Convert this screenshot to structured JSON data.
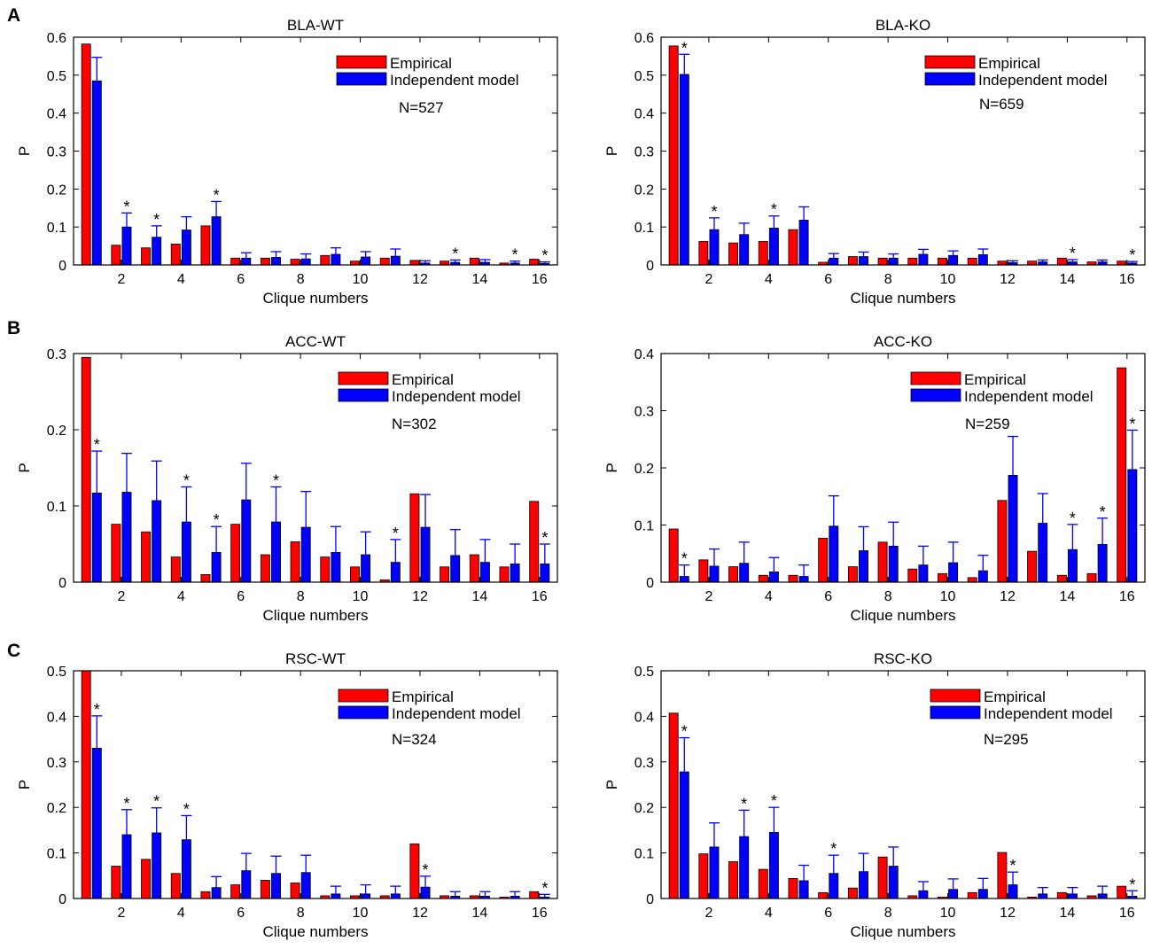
{
  "panel_letters": [
    "A",
    "B",
    "C"
  ],
  "colors": {
    "empirical": "#ff0000",
    "model": "#0000ff",
    "errorbar": "#0000ff",
    "axis": "#000000"
  },
  "chart_data": [
    {
      "type": "bar",
      "panel": "A",
      "title": "BLA-WT",
      "xlabel": "Clique numbers",
      "ylabel": "P",
      "ylim": [
        0,
        0.6
      ],
      "yticks": [
        0,
        0.1,
        0.2,
        0.3,
        0.4,
        0.5,
        0.6
      ],
      "yticklabels": [
        "0",
        "0.1",
        "0.2",
        "0.3",
        "0.4",
        "0.5",
        "0.6"
      ],
      "xticks": [
        2,
        4,
        6,
        8,
        10,
        12,
        14,
        16
      ],
      "xticklabels": [
        "2",
        "4",
        "6",
        "8",
        "10",
        "12",
        "14",
        "16"
      ],
      "categories": [
        1,
        2,
        3,
        4,
        5,
        6,
        7,
        8,
        9,
        10,
        11,
        12,
        13,
        14,
        15,
        16
      ],
      "legend": [
        "Empirical",
        "Independent model"
      ],
      "legend_position": "top-right",
      "annotation": "N=527",
      "series": [
        {
          "name": "Empirical",
          "values": [
            0.582,
            0.052,
            0.045,
            0.055,
            0.103,
            0.018,
            0.018,
            0.015,
            0.025,
            0.01,
            0.018,
            0.012,
            0.01,
            0.018,
            0.005,
            0.015
          ]
        },
        {
          "name": "Independent model",
          "values": [
            0.485,
            0.1,
            0.073,
            0.092,
            0.127,
            0.018,
            0.02,
            0.016,
            0.028,
            0.021,
            0.023,
            0.005,
            0.007,
            0.007,
            0.005,
            0.004
          ],
          "error": [
            0.062,
            0.037,
            0.03,
            0.035,
            0.04,
            0.014,
            0.015,
            0.013,
            0.017,
            0.014,
            0.019,
            0.006,
            0.006,
            0.007,
            0.005,
            0.004
          ]
        }
      ],
      "significant": [
        2,
        3,
        5,
        13,
        15,
        16
      ],
      "star_label": "*"
    },
    {
      "type": "bar",
      "panel": "A",
      "title": "BLA-KO",
      "xlabel": "Clique numbers",
      "ylabel": "P",
      "ylim": [
        0,
        0.6
      ],
      "yticks": [
        0,
        0.1,
        0.2,
        0.3,
        0.4,
        0.5,
        0.6
      ],
      "yticklabels": [
        "0",
        "0.1",
        "0.2",
        "0.3",
        "0.4",
        "0.5",
        "0.6"
      ],
      "xticks": [
        2,
        4,
        6,
        8,
        10,
        12,
        14,
        16
      ],
      "xticklabels": [
        "2",
        "4",
        "6",
        "8",
        "10",
        "12",
        "14",
        "16"
      ],
      "categories": [
        1,
        2,
        3,
        4,
        5,
        6,
        7,
        8,
        9,
        10,
        11,
        12,
        13,
        14,
        15,
        16
      ],
      "legend": [
        "Empirical",
        "Independent model"
      ],
      "legend_position": "top-right",
      "annotation": "N=659",
      "series": [
        {
          "name": "Empirical",
          "values": [
            0.577,
            0.062,
            0.058,
            0.062,
            0.093,
            0.007,
            0.022,
            0.018,
            0.018,
            0.018,
            0.018,
            0.01,
            0.01,
            0.018,
            0.008,
            0.01
          ]
        },
        {
          "name": "Independent model",
          "values": [
            0.502,
            0.093,
            0.08,
            0.097,
            0.118,
            0.018,
            0.022,
            0.018,
            0.028,
            0.025,
            0.027,
            0.006,
            0.008,
            0.008,
            0.008,
            0.005
          ],
          "error": [
            0.053,
            0.031,
            0.03,
            0.032,
            0.035,
            0.012,
            0.012,
            0.011,
            0.013,
            0.012,
            0.015,
            0.005,
            0.005,
            0.006,
            0.005,
            0.004
          ]
        }
      ],
      "significant": [
        1,
        2,
        4,
        14,
        16
      ],
      "star_label": "*"
    },
    {
      "type": "bar",
      "panel": "B",
      "title": "ACC-WT",
      "xlabel": "Clique numbers",
      "ylabel": "P",
      "ylim": [
        0,
        0.3
      ],
      "yticks": [
        0,
        0.1,
        0.2,
        0.3
      ],
      "yticklabels": [
        "0",
        "0.1",
        "0.2",
        "0.3"
      ],
      "xticks": [
        2,
        4,
        6,
        8,
        10,
        12,
        14,
        16
      ],
      "xticklabels": [
        "2",
        "4",
        "6",
        "8",
        "10",
        "12",
        "14",
        "16"
      ],
      "categories": [
        1,
        2,
        3,
        4,
        5,
        6,
        7,
        8,
        9,
        10,
        11,
        12,
        13,
        14,
        15,
        16
      ],
      "legend": [
        "Empirical",
        "Independent model"
      ],
      "legend_position": "top-right",
      "annotation": "N=302",
      "series": [
        {
          "name": "Empirical",
          "values": [
            0.295,
            0.076,
            0.066,
            0.033,
            0.01,
            0.076,
            0.036,
            0.053,
            0.033,
            0.02,
            0.003,
            0.116,
            0.02,
            0.036,
            0.02,
            0.106
          ]
        },
        {
          "name": "Independent model",
          "values": [
            0.117,
            0.118,
            0.107,
            0.079,
            0.039,
            0.108,
            0.079,
            0.072,
            0.039,
            0.036,
            0.026,
            0.072,
            0.035,
            0.026,
            0.024,
            0.024
          ],
          "error": [
            0.055,
            0.051,
            0.052,
            0.046,
            0.034,
            0.048,
            0.046,
            0.047,
            0.034,
            0.03,
            0.03,
            0.043,
            0.034,
            0.03,
            0.026,
            0.026
          ]
        }
      ],
      "significant": [
        1,
        4,
        5,
        7,
        11,
        16
      ],
      "star_label": "*"
    },
    {
      "type": "bar",
      "panel": "B",
      "title": "ACC-KO",
      "xlabel": "Clique numbers",
      "ylabel": "P",
      "ylim": [
        0,
        0.4
      ],
      "yticks": [
        0,
        0.1,
        0.2,
        0.3,
        0.4
      ],
      "yticklabels": [
        "0",
        "0.1",
        "0.2",
        "0.3",
        "0.4"
      ],
      "xticks": [
        2,
        4,
        6,
        8,
        10,
        12,
        14,
        16
      ],
      "xticklabels": [
        "2",
        "4",
        "6",
        "8",
        "10",
        "12",
        "14",
        "16"
      ],
      "categories": [
        1,
        2,
        3,
        4,
        5,
        6,
        7,
        8,
        9,
        10,
        11,
        12,
        13,
        14,
        15,
        16
      ],
      "legend": [
        "Empirical",
        "Independent model"
      ],
      "legend_position": "top-right",
      "annotation": "N=259",
      "series": [
        {
          "name": "Empirical",
          "values": [
            0.093,
            0.039,
            0.027,
            0.012,
            0.012,
            0.077,
            0.027,
            0.07,
            0.023,
            0.015,
            0.008,
            0.143,
            0.054,
            0.012,
            0.015,
            0.375
          ]
        },
        {
          "name": "Independent model",
          "values": [
            0.01,
            0.028,
            0.033,
            0.018,
            0.01,
            0.098,
            0.055,
            0.063,
            0.03,
            0.034,
            0.02,
            0.187,
            0.103,
            0.057,
            0.066,
            0.197
          ],
          "error": [
            0.02,
            0.03,
            0.037,
            0.025,
            0.02,
            0.053,
            0.042,
            0.042,
            0.033,
            0.036,
            0.027,
            0.068,
            0.052,
            0.044,
            0.046,
            0.069
          ]
        }
      ],
      "significant": [
        1,
        14,
        15,
        16
      ],
      "star_label": "*"
    },
    {
      "type": "bar",
      "panel": "C",
      "title": "RSC-WT",
      "xlabel": "Clique numbers",
      "ylabel": "P",
      "ylim": [
        0,
        0.5
      ],
      "yticks": [
        0,
        0.1,
        0.2,
        0.3,
        0.4,
        0.5
      ],
      "yticklabels": [
        "0",
        "0.1",
        "0.2",
        "0.3",
        "0.4",
        "0.5"
      ],
      "xticks": [
        2,
        4,
        6,
        8,
        10,
        12,
        14,
        16
      ],
      "xticklabels": [
        "2",
        "4",
        "6",
        "8",
        "10",
        "12",
        "14",
        "16"
      ],
      "categories": [
        1,
        2,
        3,
        4,
        5,
        6,
        7,
        8,
        9,
        10,
        11,
        12,
        13,
        14,
        15,
        16
      ],
      "legend": [
        "Empirical",
        "Independent model"
      ],
      "legend_position": "top-right",
      "annotation": "N=324",
      "series": [
        {
          "name": "Empirical",
          "values": [
            0.5,
            0.071,
            0.086,
            0.055,
            0.015,
            0.03,
            0.04,
            0.034,
            0.006,
            0.006,
            0.006,
            0.12,
            0.006,
            0.006,
            0.003,
            0.015
          ]
        },
        {
          "name": "Independent model",
          "values": [
            0.33,
            0.14,
            0.144,
            0.129,
            0.024,
            0.061,
            0.055,
            0.057,
            0.01,
            0.01,
            0.01,
            0.025,
            0.005,
            0.005,
            0.005,
            0.003
          ],
          "error": [
            0.071,
            0.055,
            0.055,
            0.053,
            0.024,
            0.038,
            0.038,
            0.038,
            0.017,
            0.02,
            0.017,
            0.024,
            0.01,
            0.01,
            0.01,
            0.006
          ]
        }
      ],
      "significant": [
        1,
        2,
        3,
        4,
        12,
        16
      ],
      "star_label": "*"
    },
    {
      "type": "bar",
      "panel": "C",
      "title": "RSC-KO",
      "xlabel": "Clique numbers",
      "ylabel": "P",
      "ylim": [
        0,
        0.5
      ],
      "yticks": [
        0,
        0.1,
        0.2,
        0.3,
        0.4,
        0.5
      ],
      "yticklabels": [
        "0",
        "0.1",
        "0.2",
        "0.3",
        "0.4",
        "0.5"
      ],
      "xticks": [
        2,
        4,
        6,
        8,
        10,
        12,
        14,
        16
      ],
      "xticklabels": [
        "2",
        "4",
        "6",
        "8",
        "10",
        "12",
        "14",
        "16"
      ],
      "categories": [
        1,
        2,
        3,
        4,
        5,
        6,
        7,
        8,
        9,
        10,
        11,
        12,
        13,
        14,
        15,
        16
      ],
      "legend": [
        "Empirical",
        "Independent model"
      ],
      "legend_position": "top-right",
      "annotation": "N=295",
      "series": [
        {
          "name": "Empirical",
          "values": [
            0.407,
            0.098,
            0.081,
            0.064,
            0.044,
            0.013,
            0.023,
            0.091,
            0.006,
            0.003,
            0.013,
            0.101,
            0.003,
            0.013,
            0.006,
            0.027
          ]
        },
        {
          "name": "Independent model",
          "values": [
            0.278,
            0.113,
            0.136,
            0.145,
            0.039,
            0.055,
            0.059,
            0.071,
            0.017,
            0.02,
            0.02,
            0.03,
            0.01,
            0.01,
            0.01,
            0.005
          ],
          "error": [
            0.075,
            0.053,
            0.058,
            0.055,
            0.034,
            0.04,
            0.04,
            0.042,
            0.02,
            0.023,
            0.024,
            0.028,
            0.014,
            0.014,
            0.017,
            0.012
          ]
        }
      ],
      "significant": [
        1,
        3,
        4,
        6,
        12,
        16
      ],
      "star_label": "*"
    }
  ]
}
